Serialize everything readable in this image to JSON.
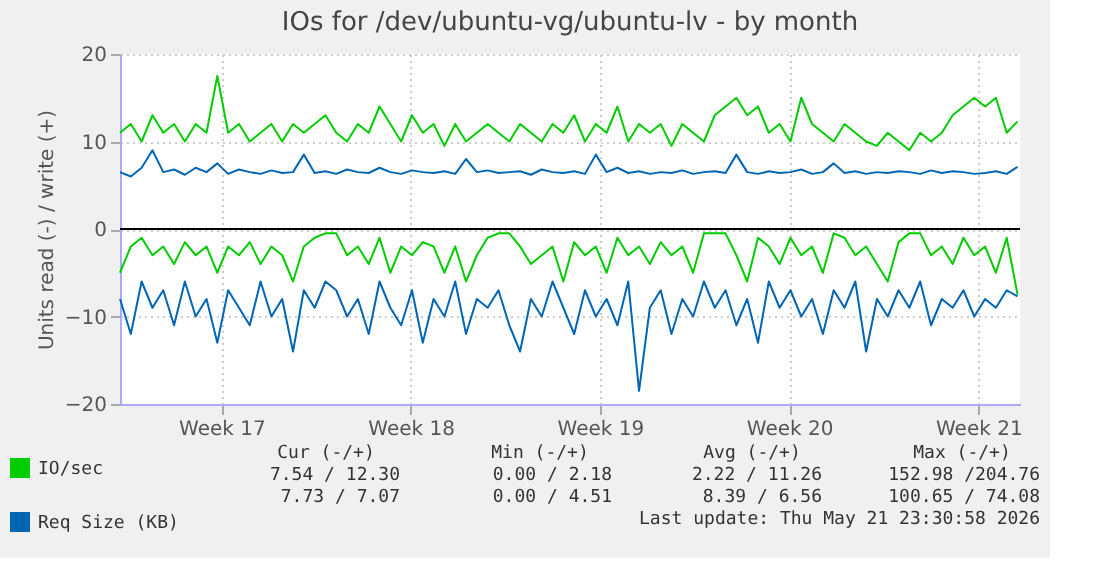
{
  "chart_data": {
    "type": "line",
    "title": "IOs for /dev/ubuntu-vg/ubuntu-lv - by month",
    "ylabel": "Units read (-) / write (+)",
    "x": [
      "2026-04-18T17:00",
      "2026-04-19T02:36",
      "2026-04-19T12:12",
      "2026-04-19T21:48",
      "2026-04-20T07:24",
      "2026-04-20T17:00",
      "2026-04-21T02:36",
      "2026-04-21T12:12",
      "2026-04-21T21:48",
      "2026-04-22T07:24",
      "2026-04-22T17:00",
      "2026-04-23T02:36",
      "2026-04-23T12:12",
      "2026-04-23T21:48",
      "2026-04-24T07:24",
      "2026-04-24T17:00",
      "2026-04-25T02:36",
      "2026-04-25T12:12",
      "2026-04-25T21:48",
      "2026-04-26T07:24",
      "2026-04-26T17:00",
      "2026-04-27T02:36",
      "2026-04-27T12:12",
      "2026-04-27T21:48",
      "2026-04-28T07:24",
      "2026-04-28T17:00",
      "2026-04-29T02:36",
      "2026-04-29T12:12",
      "2026-04-29T21:48",
      "2026-04-30T07:24",
      "2026-04-30T17:00",
      "2026-05-01T02:36",
      "2026-05-01T12:12",
      "2026-05-01T21:48",
      "2026-05-02T07:24",
      "2026-05-02T17:00",
      "2026-05-03T02:36",
      "2026-05-03T12:12",
      "2026-05-03T21:48",
      "2026-05-04T07:24",
      "2026-05-04T17:00",
      "2026-05-05T02:36",
      "2026-05-05T12:12",
      "2026-05-05T21:48",
      "2026-05-06T07:24",
      "2026-05-06T17:00",
      "2026-05-07T02:36",
      "2026-05-07T12:12",
      "2026-05-07T21:48",
      "2026-05-08T07:24",
      "2026-05-08T17:00",
      "2026-05-09T02:36",
      "2026-05-09T12:12",
      "2026-05-09T21:48",
      "2026-05-10T07:24",
      "2026-05-10T17:00",
      "2026-05-11T02:36",
      "2026-05-11T12:12",
      "2026-05-11T21:48",
      "2026-05-12T07:24",
      "2026-05-12T17:00",
      "2026-05-13T02:36",
      "2026-05-13T12:12",
      "2026-05-13T21:48",
      "2026-05-14T07:24",
      "2026-05-14T17:00",
      "2026-05-15T02:36",
      "2026-05-15T12:12",
      "2026-05-15T21:48",
      "2026-05-16T07:24",
      "2026-05-16T17:00",
      "2026-05-17T02:36",
      "2026-05-17T12:12",
      "2026-05-17T21:48",
      "2026-05-18T07:24",
      "2026-05-18T17:00",
      "2026-05-19T02:36",
      "2026-05-19T12:12",
      "2026-05-19T21:48",
      "2026-05-20T07:24",
      "2026-05-20T17:00",
      "2026-05-21T02:36",
      "2026-05-21T12:12",
      "2026-05-21T21:48"
    ],
    "series": [
      {
        "name": "IO/sec",
        "color": "#00cc00",
        "values": [
          11,
          12,
          10,
          13,
          11,
          12,
          10,
          12,
          11,
          17.5,
          11,
          12,
          10,
          11,
          12,
          10,
          12,
          11,
          12,
          13,
          11,
          10,
          12,
          11,
          14,
          12,
          10,
          13,
          11,
          12,
          9.5,
          12,
          10,
          11,
          12,
          11,
          10,
          12,
          11,
          10,
          12,
          11,
          13,
          10,
          12,
          11,
          14,
          10,
          12,
          11,
          12,
          9.5,
          12,
          11,
          10,
          13,
          14,
          15,
          13,
          14,
          11,
          12,
          10,
          15,
          12,
          11,
          10,
          12,
          11,
          10,
          9.5,
          11,
          10,
          9,
          11,
          10,
          11,
          13,
          14,
          15,
          14,
          15,
          11,
          12.3
        ]
      },
      {
        "name": "Req Size (KB)",
        "color": "#0066b3",
        "values": [
          6.5,
          6,
          7,
          9,
          6.5,
          6.8,
          6.2,
          7,
          6.5,
          7.5,
          6.3,
          6.8,
          6.5,
          6.3,
          6.7,
          6.4,
          6.5,
          8.5,
          6.4,
          6.6,
          6.3,
          6.8,
          6.5,
          6.4,
          7,
          6.5,
          6.3,
          6.7,
          6.5,
          6.4,
          6.6,
          6.3,
          8,
          6.5,
          6.7,
          6.4,
          6.5,
          6.6,
          6.2,
          6.8,
          6.5,
          6.4,
          6.6,
          6.3,
          8.5,
          6.5,
          7,
          6.4,
          6.6,
          6.3,
          6.5,
          6.4,
          6.7,
          6.3,
          6.5,
          6.6,
          6.4,
          8.5,
          6.5,
          6.3,
          6.6,
          6.4,
          6.5,
          6.8,
          6.3,
          6.5,
          7.5,
          6.4,
          6.6,
          6.3,
          6.5,
          6.4,
          6.6,
          6.5,
          6.3,
          6.7,
          6.4,
          6.6,
          6.5,
          6.3,
          6.4,
          6.6,
          6.3,
          7.1
        ]
      },
      {
        "color": "#00cc00",
        "values": [
          -5,
          -2,
          -1,
          -3,
          -2,
          -4,
          -1.5,
          -3,
          -2,
          -5,
          -2,
          -3,
          -1.5,
          -4,
          -2,
          -3,
          -6,
          -2,
          -1,
          -0.5,
          -0.5,
          -3,
          -2,
          -4,
          -1,
          -5,
          -2,
          -3,
          -1.5,
          -2,
          -5,
          -2,
          -6,
          -3,
          -1,
          -0.5,
          -0.5,
          -2,
          -4,
          -3,
          -2,
          -6,
          -1.5,
          -3,
          -2,
          -5,
          -1,
          -3,
          -2,
          -4,
          -1.5,
          -3,
          -2,
          -5,
          -0.5,
          -0.5,
          -0.5,
          -3,
          -6,
          -1,
          -2,
          -4,
          -1,
          -3,
          -2,
          -5,
          -0.5,
          -1,
          -3,
          -2,
          -4,
          -6,
          -1.5,
          -0.5,
          -0.5,
          -3,
          -2,
          -4,
          -1,
          -3,
          -2,
          -5,
          -1,
          -7.5
        ]
      },
      {
        "color": "#0066b3",
        "values": [
          -8,
          -12,
          -6,
          -9,
          -7,
          -11,
          -6,
          -10,
          -8,
          -13,
          -7,
          -9,
          -11,
          -6,
          -10,
          -8,
          -14,
          -7,
          -9,
          -6,
          -7,
          -10,
          -8,
          -12,
          -6,
          -9,
          -11,
          -7,
          -13,
          -8,
          -10,
          -6,
          -12,
          -8,
          -9,
          -7,
          -11,
          -14,
          -8,
          -10,
          -6,
          -9,
          -12,
          -7,
          -10,
          -8,
          -11,
          -6,
          -18.5,
          -9,
          -7,
          -12,
          -8,
          -10,
          -6,
          -9,
          -7,
          -11,
          -8,
          -13,
          -6,
          -9,
          -7,
          -10,
          -8,
          -12,
          -7,
          -9,
          -6,
          -14,
          -8,
          -10,
          -7,
          -9,
          -6,
          -11,
          -8,
          -9,
          -7,
          -10,
          -8,
          -9,
          -7,
          -7.7
        ]
      }
    ],
    "xlim": [
      "2026-04-18T17:00",
      "2026-05-22T00:00"
    ],
    "xticks": [
      {
        "value": "2026-04-22T11:00",
        "label": "Week 17"
      },
      {
        "value": "2026-04-29T11:00",
        "label": "Week 18"
      },
      {
        "value": "2026-05-06T11:00",
        "label": "Week 19"
      },
      {
        "value": "2026-05-13T11:00",
        "label": "Week 20"
      },
      {
        "value": "2026-05-20T11:00",
        "label": "Week 21"
      }
    ],
    "ylim": [
      -20,
      20
    ],
    "yticks": [
      -20,
      -10,
      0,
      10,
      20
    ],
    "ref_lines": [
      {
        "axis": "y",
        "value": 0,
        "color": "#000000"
      }
    ],
    "grid": true,
    "legend": "bottom left",
    "annotations": [
      "Cur (-/+)",
      "Min (-/+)",
      "Avg (-/+)",
      "Max (-/+)",
      "7.54 / 12.30",
      "0.00 /  2.18",
      "2.22 / 11.26",
      "152.98 /204.76",
      "7.73 /  7.07",
      "0.00 /  4.51",
      "8.39 /  6.56",
      "100.65 / 74.08",
      "Last update: Thu May 21 23:30:58 2026"
    ]
  }
}
